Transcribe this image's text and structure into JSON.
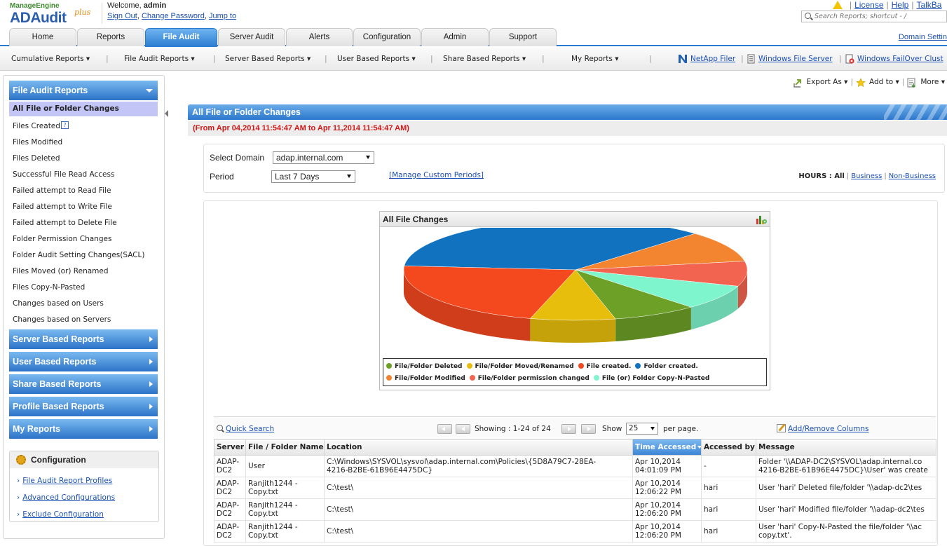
{
  "header": {
    "logo_brand": "ManageEngine",
    "logo_product": "ADAudit",
    "logo_plus": "plus",
    "welcome_prefix": "Welcome, ",
    "welcome_user": "admin",
    "links": [
      "Sign Out",
      "Change Password",
      "Jump to"
    ],
    "top_links": [
      "License",
      "Help",
      "TalkBa"
    ],
    "search_placeholder": "Search Reports; shortcut - /"
  },
  "tabs": [
    "Home",
    "Reports",
    "File Audit",
    "Server Audit",
    "Alerts",
    "Configuration",
    "Admin",
    "Support"
  ],
  "active_tab": "File Audit",
  "domain_settings": "Domain Settin",
  "submenu": {
    "items": [
      "Cumulative Reports ▾",
      "File Audit Reports ▾",
      "Server Based Reports ▾",
      "User Based Reports ▾",
      "Share Based Reports ▾",
      "My Reports ▾"
    ],
    "links": [
      "NetApp Filer",
      "Windows File Server",
      "Windows FailOver Clust"
    ]
  },
  "sidebar": {
    "file_audit_head": "File Audit Reports",
    "items": [
      "All File or Folder Changes",
      "Files Created",
      "Files Modified",
      "Files Deleted",
      "Successful File Read Access",
      "Failed attempt to Read File",
      "Failed attempt to Write File",
      "Failed attempt to Delete File",
      "Folder Permission Changes",
      "Folder Audit Setting Changes(SACL)",
      "Files Moved (or) Renamed",
      "Files Copy-N-Pasted",
      "Changes based on Users",
      "Changes based on Servers"
    ],
    "help_glyph": "?",
    "sections": [
      "Server Based Reports",
      "User Based Reports",
      "Share Based Reports",
      "Profile Based Reports",
      "My Reports"
    ],
    "config_title": "Configuration",
    "config_links": [
      "File Audit Report Profiles",
      "Advanced Configurations",
      "Exclude Configuration"
    ]
  },
  "toolbar": {
    "export": "Export As ▾",
    "add_to": "Add to ▾",
    "more": "More ▾"
  },
  "content": {
    "title": "All File or Folder Changes",
    "date_range": "(From Apr 04,2014 11:54:47 AM to Apr 11,2014 11:54:47 AM)"
  },
  "filter": {
    "domain_label": "Select Domain",
    "domain_value": "adap.internal.com",
    "period_label": "Period",
    "period_value": "Last 7 Days",
    "manage_link": "[Manage Custom Periods]",
    "hours_label": "HOURS : ",
    "hours_all": "All",
    "hours_links": [
      "Business",
      "Non-Business"
    ]
  },
  "chart_data": {
    "type": "pie",
    "title": "All File Changes",
    "slices": [
      {
        "label": "Folder created.",
        "value": 36,
        "color": "#1172c0"
      },
      {
        "label": "File/Folder Modified",
        "value": 10,
        "color": "#f48530"
      },
      {
        "label": "File/Folder permission changed",
        "value": 8,
        "color": "#f26450"
      },
      {
        "label": "File (or) Folder Copy-N-Pasted",
        "value": 8,
        "color": "#7ff5cd"
      },
      {
        "label": "File/Folder Deleted",
        "value": 8,
        "color": "#6da027"
      },
      {
        "label": "File/Folder Moved/Renamed",
        "value": 8,
        "color": "#e8be0c"
      },
      {
        "label": "File created.",
        "value": 22,
        "color": "#f4481e"
      }
    ],
    "legend": [
      {
        "label": "File/Folder Deleted",
        "color": "#6da027"
      },
      {
        "label": "File/Folder Moved/Renamed",
        "color": "#e8be0c"
      },
      {
        "label": "File created.",
        "color": "#f4481e"
      },
      {
        "label": "Folder created.",
        "color": "#1172c0"
      },
      {
        "label": "File/Folder Modified",
        "color": "#f48530"
      },
      {
        "label": "File/Folder permission changed",
        "color": "#f26450"
      },
      {
        "label": "File (or) Folder Copy-N-Pasted",
        "color": "#7ff5cd"
      }
    ]
  },
  "grid": {
    "quick_search": "Quick Search",
    "showing_label": "Showing : ",
    "showing_value": "1-24 of 24",
    "show_label": "Show",
    "per_page_value": "25",
    "per_page_label": "per page.",
    "add_remove": "Add/Remove Columns",
    "columns": [
      "Server",
      "File / Folder Name",
      "Location",
      "Time Accessed",
      "Accessed by",
      "Message"
    ],
    "sorted_column": "Time Accessed",
    "rows": [
      {
        "server": "ADAP-\nDC2",
        "name": "User",
        "location": "C:\\Windows\\SYSVOL\\sysvol\\adap.internal.com\\Policies\\{5D8A79C7-28EA-\n4216-B2BE-61B96E4475DC}",
        "time": "Apr 10,2014\n04:01:09 PM",
        "by": "-",
        "message": "Folder '\\\\ADAP-DC2\\SYSVOL\\adap.internal.co\n4216-B2BE-61B96E4475DC}\\User' was create"
      },
      {
        "server": "ADAP-\nDC2",
        "name": "Ranjith1244 -\nCopy.txt",
        "location": "C:\\test\\",
        "time": "Apr 10,2014\n12:06:22 PM",
        "by": "hari",
        "message": "User 'hari' Deleted file/folder '\\\\adap-dc2\\tes"
      },
      {
        "server": "ADAP-\nDC2",
        "name": "Ranjith1244 -\nCopy.txt",
        "location": "C:\\test\\",
        "time": "Apr 10,2014\n12:06:20 PM",
        "by": "hari",
        "message": "User 'hari' Modified file/folder '\\\\adap-dc2\\tes"
      },
      {
        "server": "ADAP-\nDC2",
        "name": "Ranjith1244 -\nCopy.txt",
        "location": "C:\\test\\",
        "time": "Apr 10,2014\n12:06:20 PM",
        "by": "hari",
        "message": "User 'hari' Copy-N-Pasted the file/folder '\\\\ac\ncopy.txt'."
      }
    ]
  }
}
